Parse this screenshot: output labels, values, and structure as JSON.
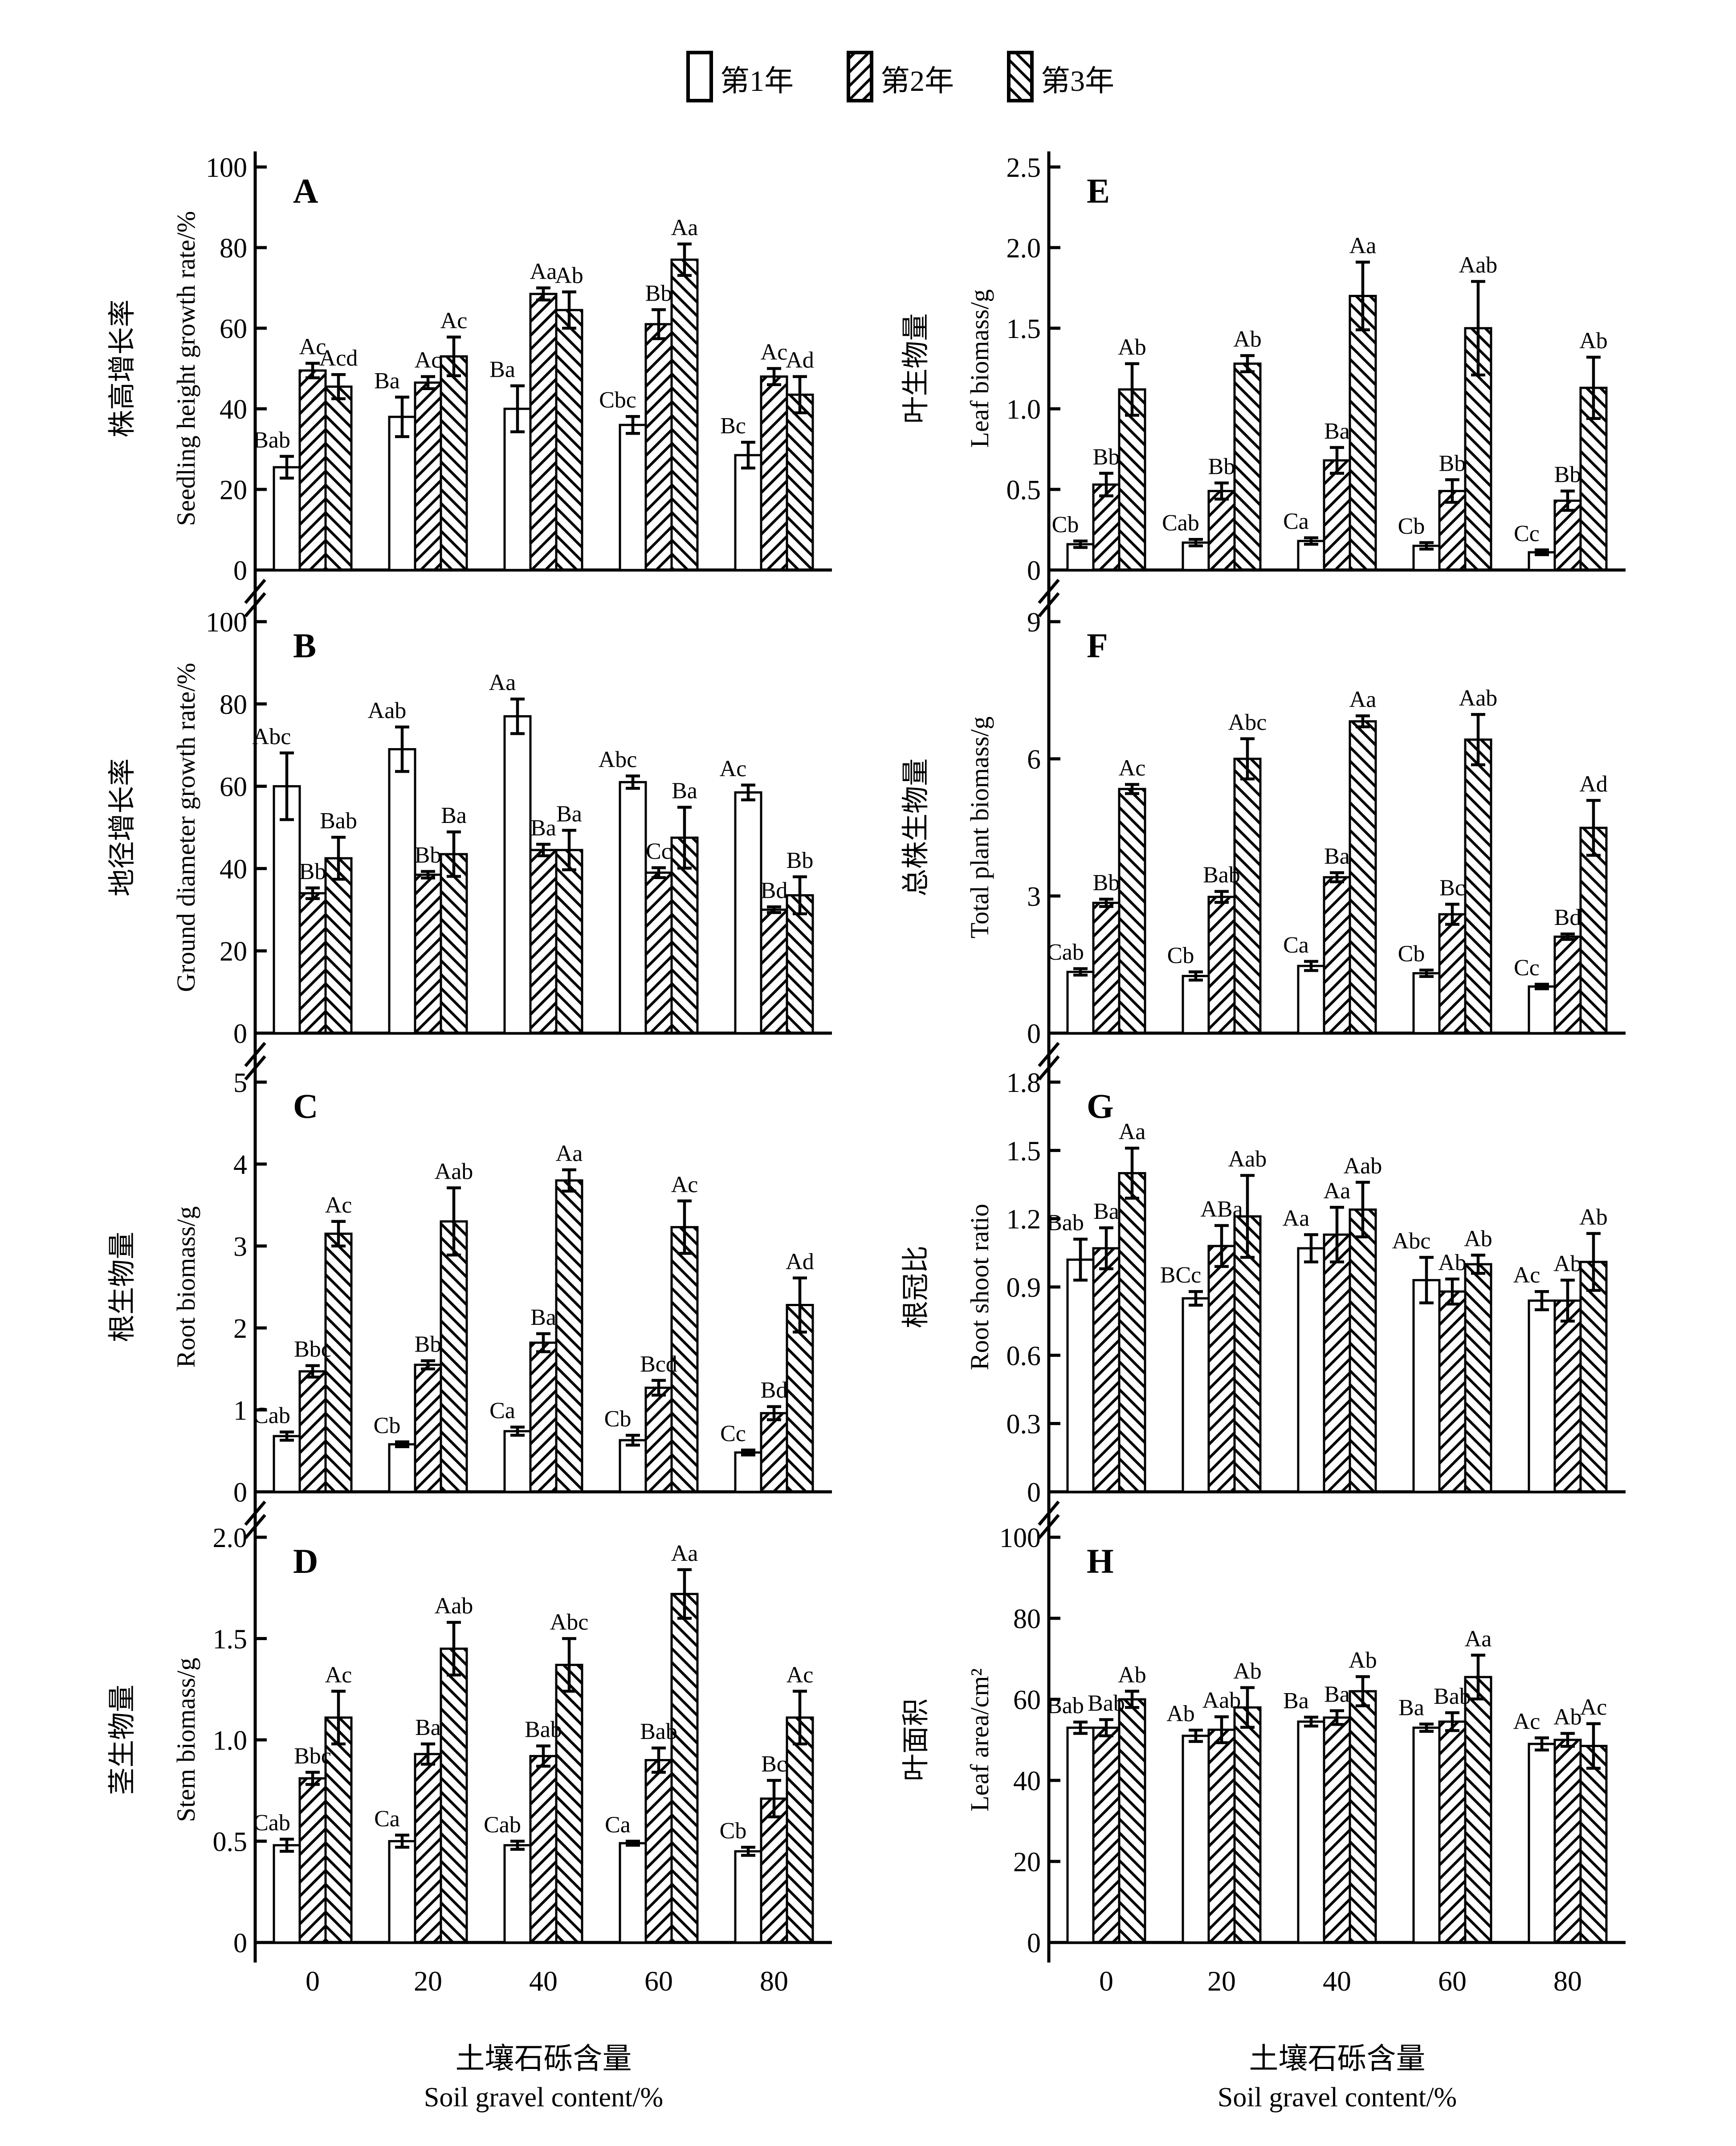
{
  "colors": {
    "ink": "#000000",
    "paper": "#ffffff"
  },
  "legend": {
    "items": [
      {
        "label": "第1年",
        "hatch": "none"
      },
      {
        "label": "第2年",
        "hatch": "forward"
      },
      {
        "label": "第3年",
        "hatch": "backward"
      }
    ]
  },
  "x_axis": {
    "title_zh": "土壤石砾含量",
    "title_en": "Soil gravel content/%",
    "categories": [
      "0",
      "20",
      "40",
      "60",
      "80"
    ]
  },
  "chart_data": [
    {
      "type": "bar",
      "panel": "A",
      "ylabel_zh": "株高增长率",
      "ylabel_en": "Seedling height growth rate/%",
      "ymax": 100,
      "tick_vals": [
        0,
        20,
        40,
        60,
        80,
        100
      ],
      "tick_labels": [
        "0",
        "20",
        "40",
        "60",
        "80",
        "100"
      ],
      "series": [
        {
          "name": "第1年",
          "values": [
            25.5,
            38,
            40,
            36,
            28.5
          ],
          "errors": [
            2.7,
            4.9,
            5.7,
            2.1,
            3.2
          ],
          "letters": [
            "Bab",
            "Ba",
            "Ba",
            "Cbc",
            "Bc"
          ]
        },
        {
          "name": "第2年",
          "values": [
            49.5,
            46.5,
            68.5,
            61,
            48
          ],
          "errors": [
            1.8,
            1.5,
            1.5,
            3.6,
            2.0
          ],
          "letters": [
            "Ac",
            "Ac",
            "Aa",
            "Bb",
            "Ac"
          ]
        },
        {
          "name": "第3年",
          "values": [
            45.5,
            53,
            64.5,
            77,
            43.5
          ],
          "errors": [
            3.0,
            4.8,
            4.5,
            3.9,
            4.5
          ],
          "letters": [
            "Acd",
            "Ac",
            "Ab",
            "Aa",
            "Ad"
          ]
        }
      ]
    },
    {
      "type": "bar",
      "panel": "B",
      "ylabel_zh": "地径增长率",
      "ylabel_en": "Ground diameter growth rate/%",
      "ymax": 100,
      "tick_vals": [
        0,
        20,
        40,
        60,
        80,
        100
      ],
      "tick_labels": [
        "0",
        "20",
        "40",
        "60",
        "80",
        "100"
      ],
      "series": [
        {
          "name": "第1年",
          "values": [
            60,
            69,
            77,
            61,
            58.5
          ],
          "errors": [
            8.1,
            5.4,
            4.2,
            1.5,
            1.8
          ],
          "letters": [
            "Abc",
            "Aab",
            "Aa",
            "Abc",
            "Ac"
          ]
        },
        {
          "name": "第2年",
          "values": [
            34,
            38.5,
            44.5,
            39,
            30
          ],
          "errors": [
            1.3,
            0.8,
            1.4,
            1.2,
            0.7
          ],
          "letters": [
            "Bb",
            "Bb",
            "Ba",
            "Cc",
            "Bd"
          ]
        },
        {
          "name": "第3年",
          "values": [
            42.5,
            43.5,
            44.5,
            47.5,
            33.5
          ],
          "errors": [
            5.1,
            5.4,
            4.8,
            7.4,
            4.5
          ],
          "letters": [
            "Bab",
            "Ba",
            "Ba",
            "Ba",
            "Bb"
          ]
        }
      ]
    },
    {
      "type": "bar",
      "panel": "C",
      "ylabel_zh": "根生物量",
      "ylabel_en": "Root biomass/g",
      "ymax": 5,
      "tick_vals": [
        0,
        1,
        2,
        3,
        4,
        5
      ],
      "tick_labels": [
        "0",
        "1",
        "2",
        "3",
        "4",
        "5"
      ],
      "series": [
        {
          "name": "第1年",
          "values": [
            0.68,
            0.58,
            0.74,
            0.63,
            0.48
          ],
          "errors": [
            0.05,
            0.03,
            0.05,
            0.06,
            0.03
          ],
          "letters": [
            "Cab",
            "Cb",
            "Ca",
            "Cb",
            "Cc"
          ]
        },
        {
          "name": "第2年",
          "values": [
            1.47,
            1.55,
            1.82,
            1.27,
            0.96
          ],
          "errors": [
            0.07,
            0.05,
            0.11,
            0.09,
            0.08
          ],
          "letters": [
            "Bbc",
            "Bb",
            "Ba",
            "Bcd",
            "Bd"
          ]
        },
        {
          "name": "第3年",
          "values": [
            3.15,
            3.3,
            3.8,
            3.23,
            2.28
          ],
          "errors": [
            0.15,
            0.41,
            0.13,
            0.32,
            0.33
          ],
          "letters": [
            "Ac",
            "Aab",
            "Aa",
            "Ac",
            "Ad"
          ]
        }
      ]
    },
    {
      "type": "bar",
      "panel": "D",
      "ylabel_zh": "茎生物量",
      "ylabel_en": "Stem biomass/g",
      "ymax": 2.0,
      "tick_vals": [
        0,
        0.5,
        1.0,
        1.5,
        2.0
      ],
      "tick_labels": [
        "0",
        "0.5",
        "1.0",
        "1.5",
        "2.0"
      ],
      "series": [
        {
          "name": "第1年",
          "values": [
            0.48,
            0.5,
            0.48,
            0.49,
            0.45
          ],
          "errors": [
            0.03,
            0.03,
            0.02,
            0.01,
            0.02
          ],
          "letters": [
            "Cab",
            "Ca",
            "Cab",
            "Ca",
            "Cb"
          ]
        },
        {
          "name": "第2年",
          "values": [
            0.81,
            0.93,
            0.92,
            0.9,
            0.71
          ],
          "errors": [
            0.03,
            0.05,
            0.05,
            0.06,
            0.09
          ],
          "letters": [
            "Bbc",
            "Ba",
            "Bab",
            "Bab",
            "Bc"
          ]
        },
        {
          "name": "第3年",
          "values": [
            1.11,
            1.45,
            1.37,
            1.72,
            1.11
          ],
          "errors": [
            0.13,
            0.13,
            0.13,
            0.12,
            0.13
          ],
          "letters": [
            "Ac",
            "Aab",
            "Abc",
            "Aa",
            "Ac"
          ]
        }
      ]
    },
    {
      "type": "bar",
      "panel": "E",
      "ylabel_zh": "叶生物量",
      "ylabel_en": "Leaf biomass/g",
      "ymax": 2.5,
      "tick_vals": [
        0,
        0.5,
        1.0,
        1.5,
        2.0,
        2.5
      ],
      "tick_labels": [
        "0",
        "0.5",
        "1.0",
        "1.5",
        "2.0",
        "2.5"
      ],
      "series": [
        {
          "name": "第1年",
          "values": [
            0.16,
            0.17,
            0.18,
            0.15,
            0.11
          ],
          "errors": [
            0.02,
            0.02,
            0.02,
            0.02,
            0.015
          ],
          "letters": [
            "Cb",
            "Cab",
            "Ca",
            "Cb",
            "Cc"
          ]
        },
        {
          "name": "第2年",
          "values": [
            0.53,
            0.49,
            0.68,
            0.49,
            0.43
          ],
          "errors": [
            0.07,
            0.05,
            0.08,
            0.07,
            0.06
          ],
          "letters": [
            "Bb",
            "Bb",
            "Ba",
            "Bb",
            "Bb"
          ]
        },
        {
          "name": "第3年",
          "values": [
            1.12,
            1.28,
            1.7,
            1.5,
            1.13
          ],
          "errors": [
            0.16,
            0.05,
            0.21,
            0.29,
            0.19
          ],
          "letters": [
            "Ab",
            "Ab",
            "Aa",
            "Aab",
            "Ab"
          ]
        }
      ]
    },
    {
      "type": "bar",
      "panel": "F",
      "ylabel_zh": "总株生物量",
      "ylabel_en": "Total plant biomass/g",
      "ymax": 9,
      "tick_vals": [
        0,
        3,
        6,
        9
      ],
      "tick_labels": [
        "0",
        "3",
        "6",
        "9"
      ],
      "series": [
        {
          "name": "第1年",
          "values": [
            1.34,
            1.25,
            1.47,
            1.31,
            1.02
          ],
          "errors": [
            0.07,
            0.09,
            0.1,
            0.07,
            0.05
          ],
          "letters": [
            "Cab",
            "Cb",
            "Ca",
            "Cb",
            "Cc"
          ]
        },
        {
          "name": "第2年",
          "values": [
            2.85,
            2.98,
            3.41,
            2.6,
            2.11
          ],
          "errors": [
            0.08,
            0.12,
            0.1,
            0.22,
            0.06
          ],
          "letters": [
            "Bb",
            "Bab",
            "Ba",
            "Bc",
            "Bd"
          ]
        },
        {
          "name": "第3年",
          "values": [
            5.34,
            6.0,
            6.82,
            6.42,
            4.49
          ],
          "errors": [
            0.1,
            0.44,
            0.12,
            0.55,
            0.6
          ],
          "letters": [
            "Ac",
            "Abc",
            "Aa",
            "Aab",
            "Ad"
          ]
        }
      ]
    },
    {
      "type": "bar",
      "panel": "G",
      "ylabel_zh": "根冠比",
      "ylabel_en": "Root shoot ratio",
      "ymax": 1.8,
      "tick_vals": [
        0,
        0.3,
        0.6,
        0.9,
        1.2,
        1.5,
        1.8
      ],
      "tick_labels": [
        "0",
        "0.3",
        "0.6",
        "0.9",
        "1.2",
        "1.5",
        "1.8"
      ],
      "series": [
        {
          "name": "第1年",
          "values": [
            1.02,
            0.85,
            1.07,
            0.93,
            0.84
          ],
          "errors": [
            0.09,
            0.03,
            0.06,
            0.1,
            0.04
          ],
          "letters": [
            "Bab",
            "BCc",
            "Aa",
            "Abc",
            "Ac"
          ]
        },
        {
          "name": "第2年",
          "values": [
            1.07,
            1.08,
            1.13,
            0.88,
            0.84
          ],
          "errors": [
            0.09,
            0.09,
            0.12,
            0.055,
            0.09
          ],
          "letters": [
            "Ba",
            "ABa",
            "Aa",
            "Ab",
            "Ab"
          ]
        },
        {
          "name": "第3年",
          "values": [
            1.4,
            1.21,
            1.24,
            1.0,
            1.01
          ],
          "errors": [
            0.11,
            0.18,
            0.12,
            0.04,
            0.125
          ],
          "letters": [
            "Aa",
            "Aab",
            "Aab",
            "Ab",
            "Ab"
          ]
        }
      ]
    },
    {
      "type": "bar",
      "panel": "H",
      "ylabel_zh": "叶面积",
      "ylabel_en": "Leaf area/cm²",
      "ymax": 100,
      "tick_vals": [
        0,
        20,
        40,
        60,
        80,
        100
      ],
      "tick_labels": [
        "0",
        "20",
        "40",
        "60",
        "80",
        "100"
      ],
      "series": [
        {
          "name": "第1年",
          "values": [
            53,
            51,
            54.5,
            53,
            49
          ],
          "errors": [
            1.4,
            1.4,
            1.1,
            0.9,
            1.5
          ],
          "letters": [
            "Bab",
            "Ab",
            "Ba",
            "Ba",
            "Ac"
          ]
        },
        {
          "name": "第2年",
          "values": [
            53,
            52.5,
            55.5,
            54.5,
            50
          ],
          "errors": [
            2.0,
            3.2,
            1.7,
            2.2,
            1.6
          ],
          "letters": [
            "Bab",
            "Aab",
            "Ba",
            "Bab",
            "Ab"
          ]
        },
        {
          "name": "第3年",
          "values": [
            60,
            58,
            62,
            65.5,
            48.5
          ],
          "errors": [
            2.0,
            4.9,
            3.6,
            5.4,
            5.5
          ],
          "letters": [
            "Ab",
            "Ab",
            "Ab",
            "Aa",
            "Ac"
          ]
        }
      ]
    }
  ]
}
